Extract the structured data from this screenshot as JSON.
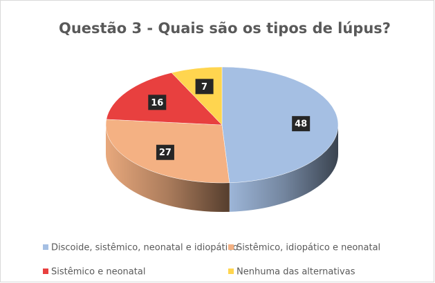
{
  "chart_data": {
    "type": "pie",
    "title": "Questão 3 - Quais são os tipos de lúpus?",
    "categories": [
      "Discoide, sistêmico, neonatal e idiopático",
      "Sistêmico, idiopático e neonatal",
      "Sistêmico e neonatal",
      "Nenhuma das alternativas"
    ],
    "values": [
      48,
      27,
      16,
      7
    ],
    "colors": [
      "#a5bfe3",
      "#f4b183",
      "#e8403f",
      "#ffd54f"
    ],
    "legend": "bottom"
  }
}
